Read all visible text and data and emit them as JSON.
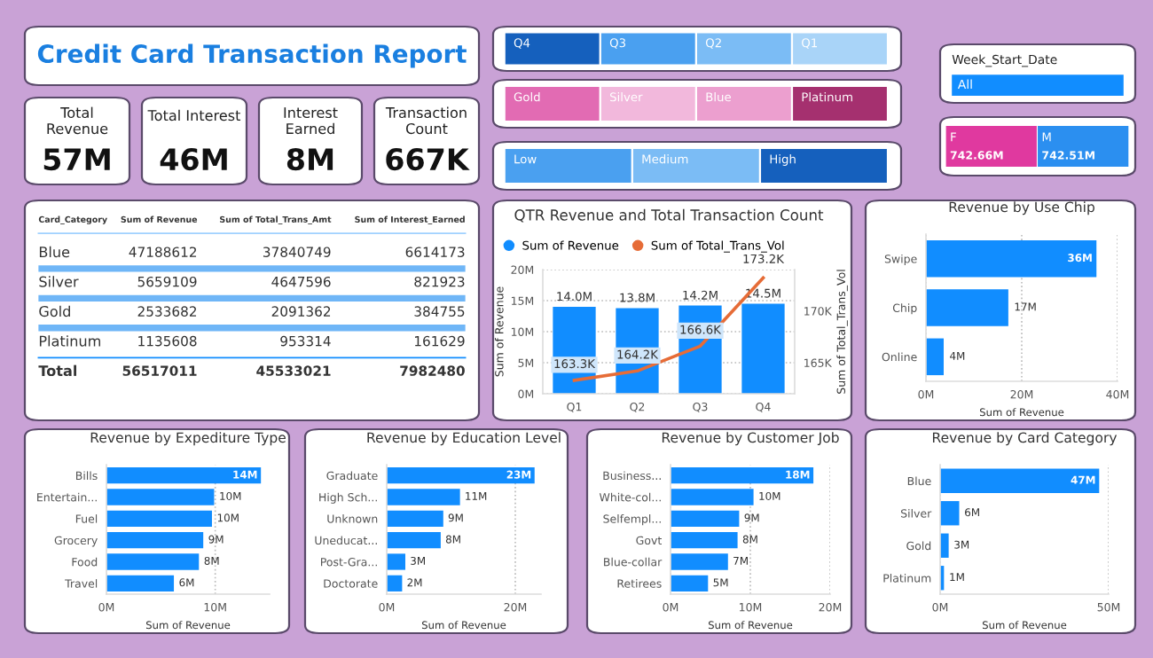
{
  "chart_data": [
    {
      "type": "other",
      "title": "Credit Card Transaction Report"
    },
    {
      "type": "other",
      "title": "Total Revenue",
      "annotations": [
        "57M"
      ]
    },
    {
      "type": "other",
      "title": "Total Interest",
      "annotations": [
        "46M"
      ]
    },
    {
      "type": "other",
      "title": "Interest Earned",
      "annotations": [
        "8M"
      ]
    },
    {
      "type": "other",
      "title": "Transaction Count",
      "annotations": [
        "667K"
      ]
    },
    {
      "type": "other",
      "categories": [
        "Q4",
        "Q3",
        "Q2",
        "Q1"
      ],
      "colors": [
        "#1560bd",
        "#4aa0f0",
        "#7bbcf5",
        "#a9d4f8"
      ]
    },
    {
      "type": "other",
      "categories": [
        "Gold",
        "Silver",
        "Blue",
        "Platinum"
      ],
      "colors": [
        "#e26bb3",
        "#f2b8dc",
        "#ec9fcf",
        "#a5306f"
      ]
    },
    {
      "type": "other",
      "categories": [
        "Low",
        "Medium",
        "High"
      ],
      "colors": [
        "#4aa0f0",
        "#7bbcf5",
        "#1560bd"
      ]
    },
    {
      "type": "other",
      "title": "Week_Start_Date",
      "categories": [
        "All"
      ],
      "colors": [
        "#118dff"
      ]
    },
    {
      "type": "other",
      "categories": [
        "F",
        "M"
      ],
      "values": [
        742.66,
        742.51
      ],
      "value_labels": [
        "742.66M",
        "742.51M"
      ],
      "colors": [
        "#e0399f",
        "#2b8ff0"
      ]
    },
    {
      "type": "other",
      "ylabel": "Card_Category",
      "categories": [
        "Blue",
        "Silver",
        "Gold",
        "Platinum",
        "Total"
      ],
      "data_labels": true,
      "series": [
        {
          "name": "Sum of Revenue",
          "values": [
            47188612,
            5659109,
            2533682,
            1135608,
            56517011
          ]
        },
        {
          "name": "Sum of Total_Trans_Amt",
          "values": [
            37840749,
            4647596,
            2091362,
            953314,
            45533021
          ]
        },
        {
          "name": "Sum of Interest_Earned",
          "values": [
            6614173,
            821923,
            384755,
            161629,
            7982480
          ]
        }
      ]
    },
    {
      "type": "bar",
      "title": "QTR Revenue and Total Transaction Count",
      "categories": [
        "Q1",
        "Q2",
        "Q3",
        "Q4"
      ],
      "ylabel": "Sum of Revenue",
      "y2label": "Sum of Total_Trans_Vol",
      "ylim": [
        0,
        20
      ],
      "yticks": [
        {
          "value": 0,
          "label": "0M"
        },
        {
          "value": 5,
          "label": "5M"
        },
        {
          "value": 10,
          "label": "10M"
        },
        {
          "value": 15,
          "label": "15M"
        },
        {
          "value": 20,
          "label": "20M"
        }
      ],
      "y2lim": [
        162,
        174
      ],
      "y2ticks": [
        {
          "value": 165,
          "label": "165K"
        },
        {
          "value": 170,
          "label": "170K"
        }
      ],
      "grid": "y",
      "legend": "top left",
      "series": [
        {
          "name": "Sum of Revenue",
          "type": "bar",
          "color": "#118dff",
          "values": [
            14.0,
            13.8,
            14.2,
            14.5
          ],
          "value_labels": [
            "14.0M",
            "13.8M",
            "14.2M",
            "14.5M"
          ]
        },
        {
          "name": "Sum of Total_Trans_Vol",
          "type": "line",
          "axis": "y2",
          "color": "#e66c37",
          "values": [
            163.3,
            164.2,
            166.6,
            173.2
          ],
          "value_labels": [
            "163.3K",
            "164.2K",
            "166.6K",
            "173.2K"
          ]
        }
      ]
    },
    {
      "type": "bar",
      "orientation": "horizontal",
      "title": "Revenue by Use Chip",
      "xlabel": "Sum of Revenue",
      "categories": [
        "Swipe",
        "Chip",
        "Online"
      ],
      "color": "#118dff",
      "values": [
        35.6,
        17.2,
        3.7
      ],
      "value_labels": [
        "36M",
        "17M",
        "4M"
      ],
      "xlim": [
        0,
        40
      ],
      "xticks": [
        {
          "value": 0,
          "label": "0M"
        },
        {
          "value": 20,
          "label": "20M"
        },
        {
          "value": 40,
          "label": "40M"
        }
      ],
      "grid": "x"
    },
    {
      "type": "bar",
      "orientation": "horizontal",
      "title": "Revenue by Expediture Type",
      "xlabel": "Sum of Revenue",
      "categories": [
        "Bills",
        "Entertain...",
        "Fuel",
        "Grocery",
        "Food",
        "Travel"
      ],
      "color": "#118dff",
      "values": [
        14.2,
        9.9,
        9.7,
        8.9,
        8.5,
        6.2
      ],
      "value_labels": [
        "14M",
        "10M",
        "10M",
        "9M",
        "8M",
        "6M"
      ],
      "xlim": [
        0,
        15
      ],
      "xticks": [
        {
          "value": 0,
          "label": "0M"
        },
        {
          "value": 10,
          "label": "10M"
        }
      ],
      "grid": "x"
    },
    {
      "type": "bar",
      "orientation": "horizontal",
      "title": "Revenue by Education Level",
      "xlabel": "Sum of Revenue",
      "categories": [
        "Graduate",
        "High Sch...",
        "Unknown",
        "Uneducat...",
        "Post-Gra...",
        "Doctorate"
      ],
      "color": "#118dff",
      "values": [
        23.0,
        11.4,
        8.8,
        8.4,
        2.9,
        2.4
      ],
      "value_labels": [
        "23M",
        "11M",
        "9M",
        "8M",
        "3M",
        "2M"
      ],
      "xlim": [
        0,
        24
      ],
      "xticks": [
        {
          "value": 0,
          "label": "0M"
        },
        {
          "value": 20,
          "label": "20M"
        }
      ],
      "grid": "x"
    },
    {
      "type": "bar",
      "orientation": "horizontal",
      "title": "Revenue by Customer Job",
      "xlabel": "Sum of Revenue",
      "categories": [
        "Business...",
        "White-col...",
        "Selfempl...",
        "Govt",
        "Blue-collar",
        "Retirees"
      ],
      "color": "#118dff",
      "values": [
        17.9,
        10.4,
        8.6,
        8.4,
        7.2,
        4.7
      ],
      "value_labels": [
        "18M",
        "10M",
        "9M",
        "8M",
        "7M",
        "5M"
      ],
      "xlim": [
        0,
        20
      ],
      "xticks": [
        {
          "value": 0,
          "label": "0M"
        },
        {
          "value": 10,
          "label": "10M"
        },
        {
          "value": 20,
          "label": "20M"
        }
      ],
      "grid": "x"
    },
    {
      "type": "bar",
      "orientation": "horizontal",
      "title": "Revenue by Card Category",
      "xlabel": "Sum of Revenue",
      "categories": [
        "Blue",
        "Silver",
        "Gold",
        "Platinum"
      ],
      "color": "#118dff",
      "values": [
        47.19,
        5.66,
        2.53,
        1.14
      ],
      "value_labels": [
        "47M",
        "6M",
        "3M",
        "1M"
      ],
      "xlim": [
        0,
        50
      ],
      "xticks": [
        {
          "value": 0,
          "label": "0M"
        },
        {
          "value": 50,
          "label": "50M"
        }
      ],
      "grid": "x"
    }
  ]
}
